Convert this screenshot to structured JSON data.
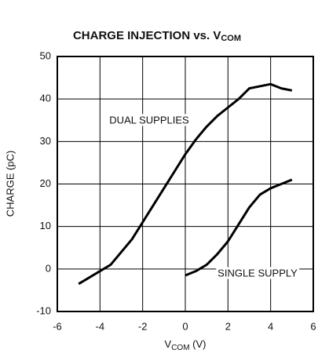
{
  "chart_data": {
    "type": "line",
    "title": "CHARGE INJECTION vs. V",
    "title_subscript": "COM",
    "x_label": {
      "main": "V",
      "subscript": "COM",
      "unit": " (V)"
    },
    "y_label": "CHARGE (pC)",
    "xlim": [
      -6,
      6
    ],
    "xticks": [
      -6,
      -4,
      -2,
      0,
      2,
      4,
      6
    ],
    "ylim": [
      -10,
      50
    ],
    "yticks": [
      -10,
      0,
      10,
      20,
      30,
      40,
      50
    ],
    "grid": true,
    "annotations": [
      "DUAL SUPPLIES",
      "SINGLE SUPPLY"
    ],
    "series": [
      {
        "color": "#000000",
        "x": [
          -5,
          -4.5,
          -4,
          -3.5,
          -3,
          -2.5,
          -2,
          -1.5,
          -1,
          -0.5,
          0,
          0.5,
          1,
          1.5,
          2,
          2.5,
          3,
          3.5,
          4,
          4.5,
          5
        ],
        "values": [
          -3.5,
          -2,
          -0.5,
          1,
          4,
          7,
          11,
          15,
          19,
          23,
          27,
          30.5,
          33.5,
          36,
          38,
          40,
          42.5,
          43,
          43.5,
          42.5,
          42
        ]
      },
      {
        "color": "#000000",
        "x": [
          0,
          0.5,
          1,
          1.5,
          2,
          2.5,
          3,
          3.5,
          4,
          4.5,
          5
        ],
        "values": [
          -1.5,
          -0.5,
          1,
          3.5,
          6.5,
          10.5,
          14.5,
          17.5,
          19,
          20,
          21
        ]
      }
    ]
  }
}
